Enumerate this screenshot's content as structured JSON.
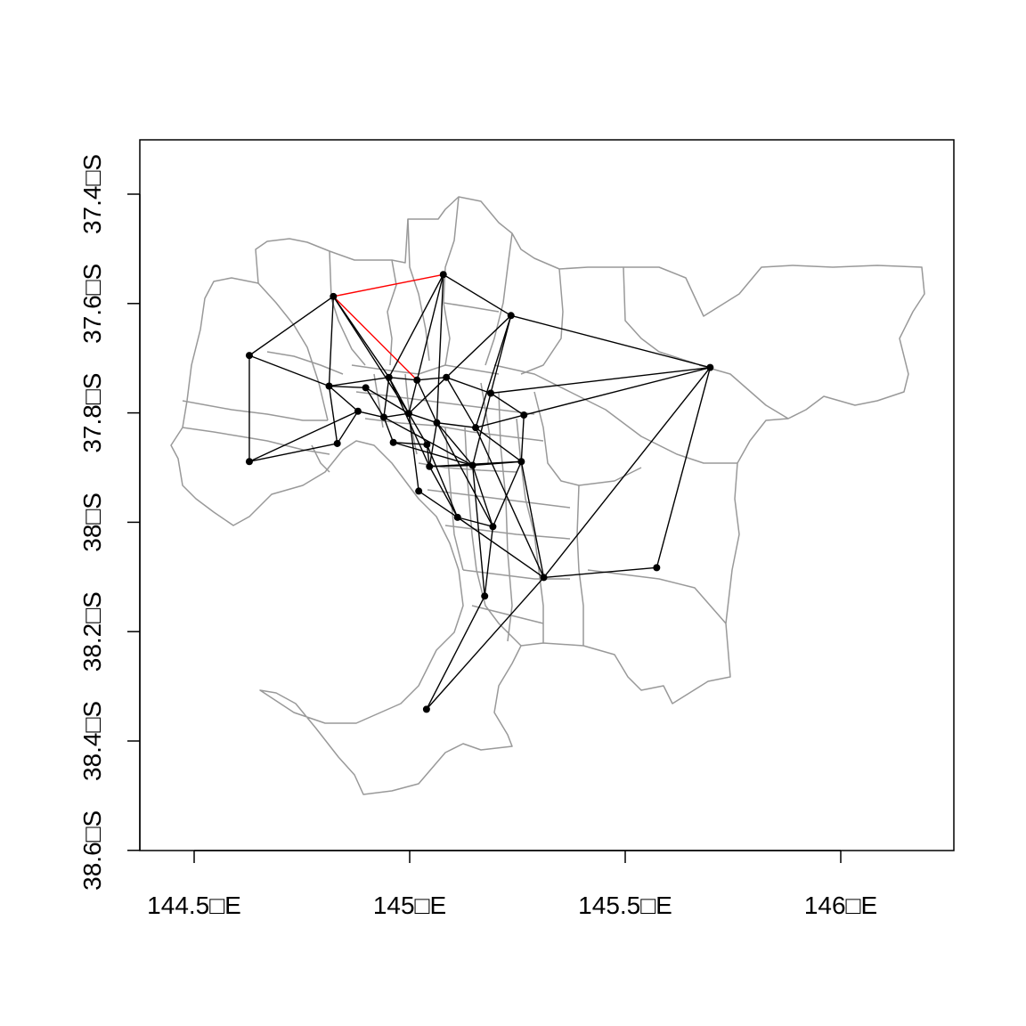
{
  "map": {
    "x_ticks": [
      {
        "lon": 144.5,
        "label": "144.5□E"
      },
      {
        "lon": 145.0,
        "label": "145□E"
      },
      {
        "lon": 145.5,
        "label": "145.5□E"
      },
      {
        "lon": 146.0,
        "label": "146□E"
      }
    ],
    "y_ticks": [
      {
        "lat": -37.4,
        "label": "37.4□S"
      },
      {
        "lat": -37.6,
        "label": "37.6□S"
      },
      {
        "lat": -37.8,
        "label": "37.8□S"
      },
      {
        "lat": -38.0,
        "label": "38□S"
      },
      {
        "lat": -38.2,
        "label": "38.2□S"
      },
      {
        "lat": -38.4,
        "label": "38.4□S"
      },
      {
        "lat": -38.6,
        "label": "38.6□S"
      }
    ],
    "xlim": [
      144.37,
      146.25
    ],
    "ylim": [
      -38.6,
      -37.3
    ],
    "colors": {
      "boundary": "#999999",
      "edge": "#000000",
      "highlight_edge": "#ff0000",
      "node": "#000000"
    },
    "nodes": [
      {
        "id": "A",
        "lon": 144.823,
        "lat": -37.587
      },
      {
        "id": "B",
        "lon": 145.078,
        "lat": -37.547
      },
      {
        "id": "C",
        "lon": 145.235,
        "lat": -37.622
      },
      {
        "id": "D",
        "lon": 145.697,
        "lat": -37.717
      },
      {
        "id": "E",
        "lon": 144.628,
        "lat": -37.695
      },
      {
        "id": "F",
        "lon": 144.813,
        "lat": -37.751
      },
      {
        "id": "G",
        "lon": 144.898,
        "lat": -37.754
      },
      {
        "id": "H",
        "lon": 144.952,
        "lat": -37.735
      },
      {
        "id": "I",
        "lon": 145.017,
        "lat": -37.74
      },
      {
        "id": "J",
        "lon": 145.085,
        "lat": -37.735
      },
      {
        "id": "K",
        "lon": 145.188,
        "lat": -37.764
      },
      {
        "id": "L",
        "lon": 144.88,
        "lat": -37.797
      },
      {
        "id": "M",
        "lon": 144.94,
        "lat": -37.808
      },
      {
        "id": "N",
        "lon": 144.998,
        "lat": -37.801
      },
      {
        "id": "O",
        "lon": 145.063,
        "lat": -37.818
      },
      {
        "id": "P",
        "lon": 145.153,
        "lat": -37.827
      },
      {
        "id": "Q",
        "lon": 145.265,
        "lat": -37.804
      },
      {
        "id": "R",
        "lon": 144.628,
        "lat": -37.889
      },
      {
        "id": "S",
        "lon": 144.832,
        "lat": -37.856
      },
      {
        "id": "T",
        "lon": 144.962,
        "lat": -37.854
      },
      {
        "id": "U",
        "lon": 145.04,
        "lat": -37.858
      },
      {
        "id": "V",
        "lon": 145.046,
        "lat": -37.898
      },
      {
        "id": "W",
        "lon": 145.146,
        "lat": -37.896
      },
      {
        "id": "X",
        "lon": 145.259,
        "lat": -37.889
      },
      {
        "id": "Y",
        "lon": 145.021,
        "lat": -37.943
      },
      {
        "id": "Z",
        "lon": 145.111,
        "lat": -37.991
      },
      {
        "id": "AA",
        "lon": 145.193,
        "lat": -38.008
      },
      {
        "id": "AB",
        "lon": 145.311,
        "lat": -38.101
      },
      {
        "id": "AC",
        "lon": 145.573,
        "lat": -38.083
      },
      {
        "id": "AD",
        "lon": 145.174,
        "lat": -38.135
      },
      {
        "id": "AE",
        "lon": 145.039,
        "lat": -38.342
      }
    ],
    "edges": [
      [
        "A",
        "B",
        "hl"
      ],
      [
        "A",
        "I",
        "hl"
      ],
      [
        "A",
        "E",
        ""
      ],
      [
        "A",
        "F",
        ""
      ],
      [
        "A",
        "H",
        ""
      ],
      [
        "A",
        "N",
        ""
      ],
      [
        "B",
        "H",
        ""
      ],
      [
        "B",
        "N",
        ""
      ],
      [
        "B",
        "O",
        ""
      ],
      [
        "B",
        "C",
        ""
      ],
      [
        "C",
        "J",
        ""
      ],
      [
        "C",
        "P",
        ""
      ],
      [
        "C",
        "D",
        ""
      ],
      [
        "C",
        "K",
        ""
      ],
      [
        "D",
        "K",
        ""
      ],
      [
        "D",
        "Q",
        ""
      ],
      [
        "D",
        "AB",
        ""
      ],
      [
        "D",
        "AC",
        ""
      ],
      [
        "E",
        "F",
        ""
      ],
      [
        "E",
        "R",
        ""
      ],
      [
        "F",
        "H",
        ""
      ],
      [
        "F",
        "L",
        ""
      ],
      [
        "F",
        "S",
        ""
      ],
      [
        "F",
        "G",
        ""
      ],
      [
        "G",
        "M",
        ""
      ],
      [
        "G",
        "N",
        ""
      ],
      [
        "H",
        "I",
        ""
      ],
      [
        "H",
        "M",
        ""
      ],
      [
        "H",
        "N",
        ""
      ],
      [
        "H",
        "V",
        ""
      ],
      [
        "I",
        "J",
        ""
      ],
      [
        "I",
        "O",
        ""
      ],
      [
        "J",
        "K",
        ""
      ],
      [
        "J",
        "N",
        ""
      ],
      [
        "J",
        "P",
        ""
      ],
      [
        "K",
        "Q",
        ""
      ],
      [
        "K",
        "W",
        ""
      ],
      [
        "L",
        "M",
        ""
      ],
      [
        "L",
        "S",
        ""
      ],
      [
        "M",
        "N",
        ""
      ],
      [
        "M",
        "T",
        ""
      ],
      [
        "M",
        "W",
        ""
      ],
      [
        "N",
        "O",
        ""
      ],
      [
        "N",
        "U",
        ""
      ],
      [
        "N",
        "Y",
        ""
      ],
      [
        "O",
        "P",
        ""
      ],
      [
        "O",
        "V",
        ""
      ],
      [
        "O",
        "W",
        ""
      ],
      [
        "O",
        "AA",
        ""
      ],
      [
        "P",
        "Q",
        ""
      ],
      [
        "P",
        "X",
        ""
      ],
      [
        "Q",
        "X",
        ""
      ],
      [
        "R",
        "S",
        ""
      ],
      [
        "R",
        "L",
        ""
      ],
      [
        "T",
        "U",
        ""
      ],
      [
        "T",
        "W",
        ""
      ],
      [
        "U",
        "V",
        ""
      ],
      [
        "U",
        "Z",
        ""
      ],
      [
        "V",
        "W",
        ""
      ],
      [
        "V",
        "X",
        ""
      ],
      [
        "V",
        "Z",
        ""
      ],
      [
        "W",
        "X",
        ""
      ],
      [
        "W",
        "AA",
        ""
      ],
      [
        "W",
        "AD",
        ""
      ],
      [
        "X",
        "AA",
        ""
      ],
      [
        "X",
        "AB",
        ""
      ],
      [
        "Y",
        "Z",
        ""
      ],
      [
        "Z",
        "AA",
        ""
      ],
      [
        "Z",
        "AB",
        ""
      ],
      [
        "AA",
        "AD",
        ""
      ],
      [
        "AB",
        "AC",
        ""
      ],
      [
        "AB",
        "AE",
        ""
      ],
      [
        "AD",
        "AE",
        ""
      ],
      [
        "P",
        "AB",
        ""
      ]
    ]
  }
}
